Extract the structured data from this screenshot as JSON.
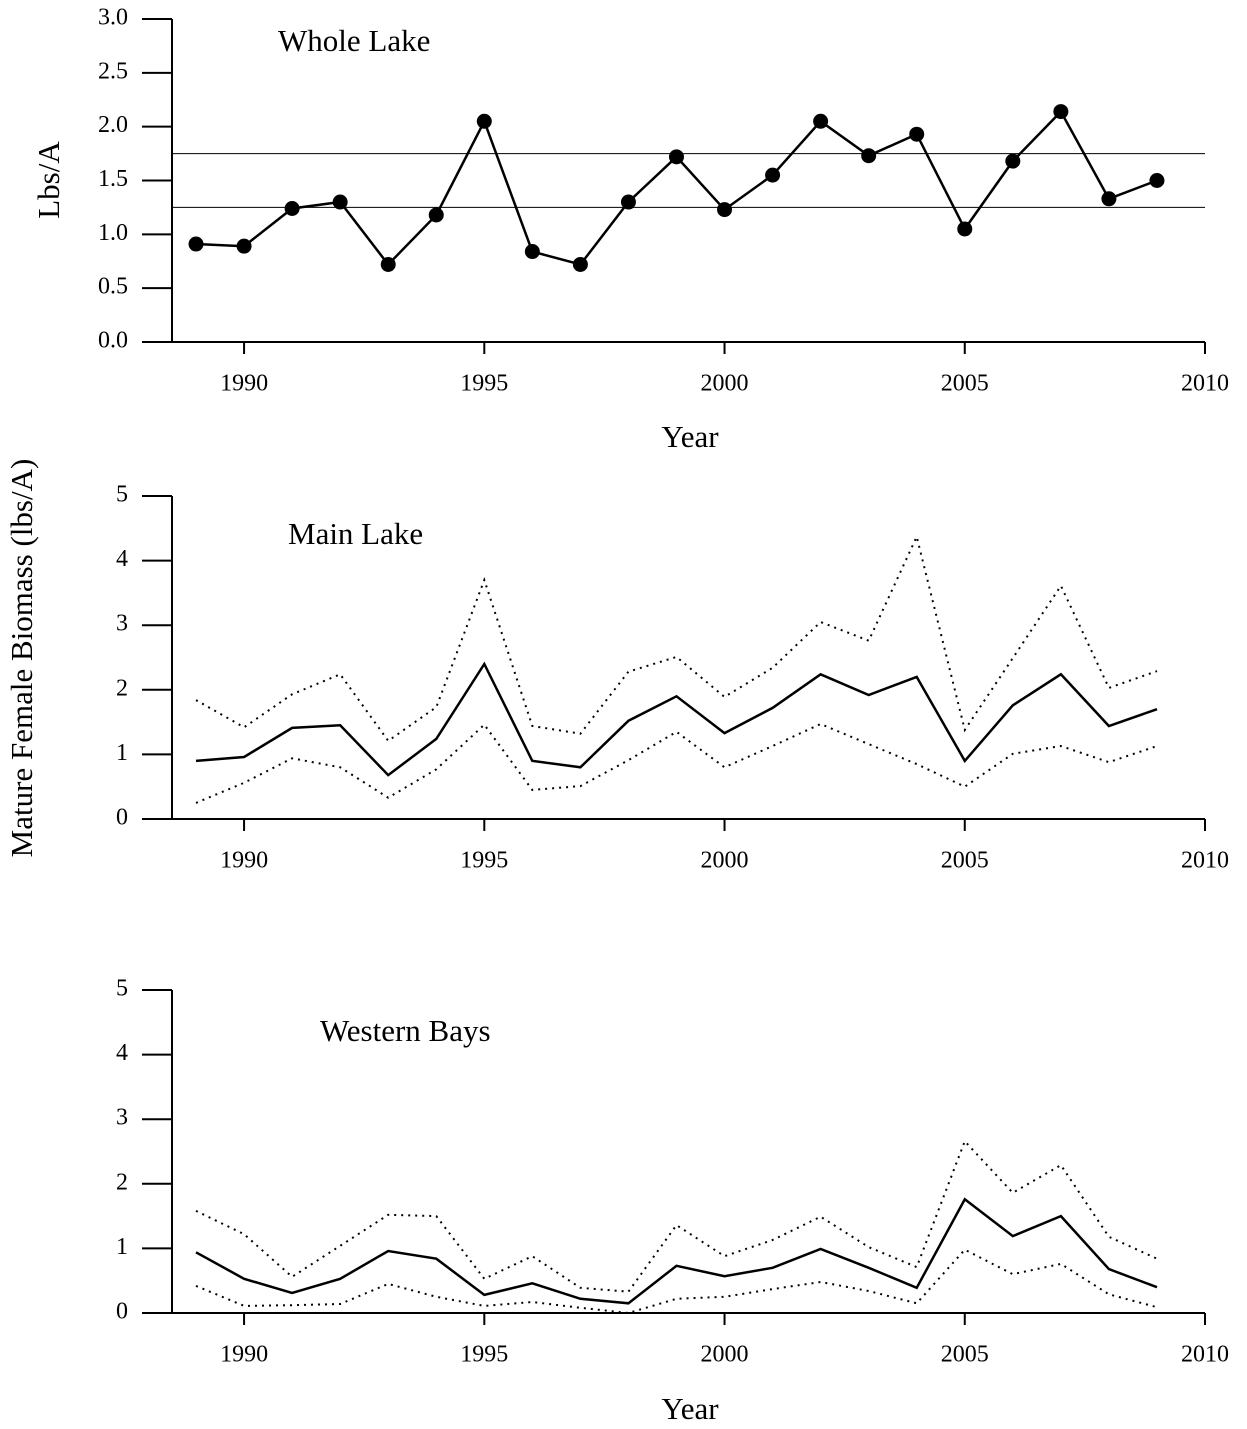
{
  "chart_data": [
    {
      "type": "line",
      "title": "Whole Lake",
      "ylabel": "Lbs/A",
      "xlabel": "Year",
      "x": [
        1989,
        1990,
        1991,
        1992,
        1993,
        1994,
        1995,
        1996,
        1997,
        1998,
        1999,
        2000,
        2001,
        2002,
        2003,
        2004,
        2005,
        2006,
        2007,
        2008,
        2009
      ],
      "series": [
        {
          "color": "#000000",
          "style": "solid",
          "marker": "circle",
          "values": [
            0.91,
            0.89,
            1.24,
            1.3,
            0.72,
            1.18,
            2.05,
            0.84,
            0.72,
            1.3,
            1.72,
            1.23,
            1.55,
            2.05,
            1.73,
            1.93,
            1.05,
            1.68,
            2.14,
            1.33,
            1.5
          ]
        }
      ],
      "hlines": [
        1.75,
        1.25
      ],
      "xlim": [
        1988.5,
        2010
      ],
      "xticks": [
        1990,
        1995,
        2000,
        2005,
        2010
      ],
      "ylim": [
        0,
        3
      ],
      "yticks": [
        {
          "value": 0,
          "label": "0.0"
        },
        0.5,
        {
          "value": 1,
          "label": "1.0"
        },
        1.5,
        {
          "value": 2,
          "label": "2.0"
        },
        2.5,
        {
          "value": 3,
          "label": "3.0"
        }
      ]
    },
    {
      "type": "line",
      "title": "Main Lake",
      "ylabel": "Mature Female Biomass (lbs/A)",
      "x": [
        1989,
        1990,
        1991,
        1992,
        1993,
        1994,
        1995,
        1996,
        1997,
        1998,
        1999,
        2000,
        2001,
        2002,
        2003,
        2004,
        2005,
        2006,
        2007,
        2008,
        2009
      ],
      "series": [
        {
          "color": "#000000",
          "style": "solid",
          "values": [
            0.9,
            0.96,
            1.41,
            1.45,
            0.68,
            1.24,
            2.4,
            0.9,
            0.8,
            1.52,
            1.9,
            1.33,
            1.72,
            2.24,
            1.92,
            2.2,
            0.9,
            1.76,
            2.24,
            1.44,
            1.7
          ]
        },
        {
          "color": "#000000",
          "style": "dotted",
          "values": [
            1.84,
            1.42,
            1.93,
            2.24,
            1.21,
            1.73,
            3.7,
            1.44,
            1.32,
            2.28,
            2.51,
            1.89,
            2.34,
            3.05,
            2.76,
            4.37,
            1.38,
            2.49,
            3.61,
            2.03,
            2.29
          ]
        },
        {
          "color": "#000000",
          "style": "dotted",
          "values": [
            0.25,
            0.56,
            0.94,
            0.8,
            0.33,
            0.77,
            1.46,
            0.45,
            0.51,
            0.91,
            1.35,
            0.8,
            1.13,
            1.47,
            1.16,
            0.85,
            0.5,
            1.01,
            1.13,
            0.88,
            1.13
          ]
        }
      ],
      "xlim": [
        1988.5,
        2010
      ],
      "xticks": [
        1990,
        1995,
        2000,
        2005,
        2010
      ],
      "ylim": [
        0,
        5
      ],
      "yticks": [
        0,
        1,
        2,
        3,
        4,
        5
      ]
    },
    {
      "type": "line",
      "title": "Western Bays",
      "xlabel": "Year",
      "x": [
        1989,
        1990,
        1991,
        1992,
        1993,
        1994,
        1995,
        1996,
        1997,
        1998,
        1999,
        2000,
        2001,
        2002,
        2003,
        2004,
        2005,
        2006,
        2007,
        2008,
        2009
      ],
      "series": [
        {
          "color": "#000000",
          "style": "solid",
          "values": [
            0.94,
            0.53,
            0.31,
            0.53,
            0.96,
            0.84,
            0.28,
            0.46,
            0.22,
            0.15,
            0.73,
            0.57,
            0.7,
            0.99,
            0.7,
            0.39,
            1.76,
            1.19,
            1.5,
            0.68,
            0.4
          ]
        },
        {
          "color": "#000000",
          "style": "dotted",
          "values": [
            1.58,
            1.22,
            0.56,
            1.04,
            1.52,
            1.5,
            0.53,
            0.88,
            0.39,
            0.33,
            1.36,
            0.88,
            1.13,
            1.49,
            1.02,
            0.71,
            2.66,
            1.86,
            2.29,
            1.18,
            0.84
          ]
        },
        {
          "color": "#000000",
          "style": "dotted",
          "values": [
            0.42,
            0.11,
            0.12,
            0.14,
            0.45,
            0.25,
            0.11,
            0.17,
            0.08,
            0.0,
            0.22,
            0.25,
            0.37,
            0.48,
            0.34,
            0.15,
            0.98,
            0.6,
            0.76,
            0.29,
            0.09
          ]
        }
      ],
      "xlim": [
        1988.5,
        2010
      ],
      "xticks": [
        1990,
        1995,
        2000,
        2005,
        2010
      ],
      "ylim": [
        0,
        5
      ],
      "yticks": [
        0,
        1,
        2,
        3,
        4,
        5
      ]
    }
  ]
}
